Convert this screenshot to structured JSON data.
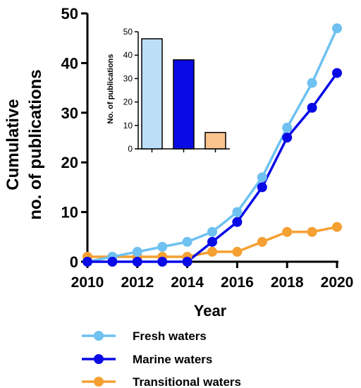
{
  "chart_data": [
    {
      "type": "line",
      "xlabel": "Year",
      "ylabel_line1": "Cumulative",
      "ylabel_line2": "no. of publications",
      "xlim": [
        2010,
        2020
      ],
      "ylim": [
        0,
        50
      ],
      "x_ticks": [
        "2010",
        "2012",
        "2014",
        "2016",
        "2018",
        "2020"
      ],
      "y_ticks": [
        "0",
        "10",
        "20",
        "30",
        "40",
        "50"
      ],
      "x": [
        2010,
        2011,
        2012,
        2013,
        2014,
        2015,
        2016,
        2017,
        2018,
        2019,
        2020
      ],
      "series": [
        {
          "name": "Fresh waters",
          "color": "#6ec1f0",
          "values": [
            0,
            1,
            2,
            3,
            4,
            6,
            10,
            17,
            27,
            36,
            47
          ]
        },
        {
          "name": "Marine waters",
          "color": "#0a0ae6",
          "values": [
            0,
            0,
            0,
            0,
            0,
            4,
            8,
            15,
            25,
            31,
            38
          ]
        },
        {
          "name": "Transitional waters",
          "color": "#f5a032",
          "values": [
            1,
            1,
            1,
            1,
            1,
            2,
            2,
            4,
            6,
            6,
            7
          ]
        }
      ],
      "legend_position": "bottom",
      "grid": false
    },
    {
      "type": "bar",
      "ylabel": "No. of publications",
      "ylim": [
        0,
        50
      ],
      "y_ticks": [
        "0",
        "10",
        "20",
        "30",
        "40",
        "50"
      ],
      "categories": [
        "Fresh waters",
        "Marine waters",
        "Transitional waters"
      ],
      "values": [
        47,
        38,
        7
      ],
      "colors": [
        "#bcdff7",
        "#0a0ae6",
        "#fbc48e"
      ]
    }
  ]
}
